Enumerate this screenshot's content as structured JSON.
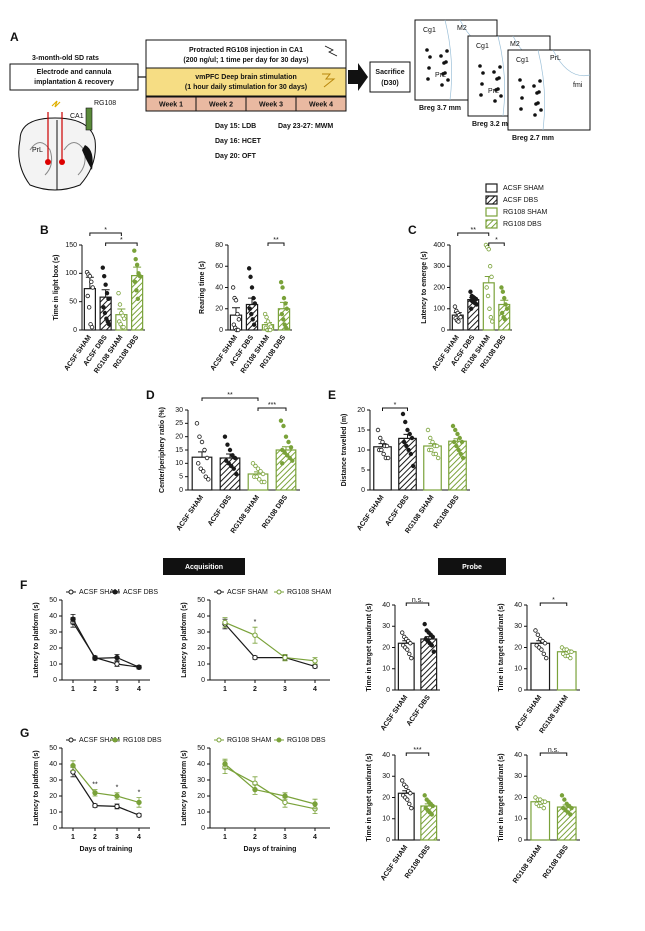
{
  "diagram": {
    "panel": "A",
    "subject": "3-month-old SD rats",
    "surgery": [
      "Electrode and cannula",
      "implantation & recovery"
    ],
    "region": "CA1",
    "drug": "RG108",
    "target": "PrL",
    "injection": "Protracted RG108 injection in CA1",
    "injection_detail": "(200 ng/ul; 1 time per day for 30 days)",
    "stimulation": "vmPFC Deep brain stimulation",
    "stimulation_detail": "(1 hour daily stimulation for 30 days)",
    "weeks": [
      "Week 1",
      "Week 2",
      "Week 3",
      "Week 4"
    ],
    "endpoint": "Sacrifice",
    "endpoint_day": "(D30)",
    "schedule": [
      "Day 15: LDB",
      "Day 23-27: MWM",
      "Day 16: HCET",
      "Day 20: OFT"
    ],
    "sections": [
      {
        "labels": [
          "Cg1",
          "M2",
          "PrL"
        ],
        "bregma": "Breg 3.7 mm"
      },
      {
        "labels": [
          "Cg1",
          "M2",
          "PrL"
        ],
        "bregma": "Breg 3.2 mm"
      },
      {
        "labels": [
          "Cg1",
          "PrL",
          "fmi"
        ],
        "bregma": "Breg 2.7 mm"
      }
    ]
  },
  "legend": [
    {
      "name": "ACSF SHAM",
      "color": "#1a1a1a",
      "hatched": false
    },
    {
      "name": "ACSF DBS",
      "color": "#1a1a1a",
      "hatched": true
    },
    {
      "name": "RG108 SHAM",
      "color": "#7aa23a",
      "hatched": false
    },
    {
      "name": "RG108 DBS",
      "color": "#7aa23a",
      "hatched": true
    }
  ],
  "headers": {
    "acquisition": "Acquisition",
    "probe": "Probe"
  },
  "chart_data": [
    {
      "type": "bar",
      "panel": "B",
      "ylabel": "Time in light box (s)",
      "categories": [
        "ACSF SHAM",
        "ACSF DBS",
        "RG108 SHAM",
        "RG108 DBS"
      ],
      "values": [
        73,
        58,
        27,
        96
      ],
      "errors": [
        20,
        13,
        10,
        15
      ],
      "points": [
        [
          102,
          98,
          95,
          85,
          75,
          60,
          40,
          10,
          5
        ],
        [
          110,
          95,
          80,
          65,
          55,
          40,
          30,
          20,
          15,
          10
        ],
        [
          65,
          45,
          30,
          25,
          20,
          15,
          10,
          5,
          5
        ],
        [
          140,
          125,
          115,
          100,
          95,
          85,
          70,
          55
        ]
      ],
      "colors": [
        "#1a1a1a",
        "#1a1a1a",
        "#7aa23a",
        "#7aa23a"
      ],
      "hatched": [
        false,
        true,
        false,
        true
      ],
      "ylim": [
        0,
        150
      ],
      "yticks": [
        0,
        50,
        100,
        150
      ],
      "annotations": [
        {
          "text": "*",
          "between": [
            0,
            2
          ]
        },
        {
          "text": "*",
          "between": [
            1,
            3
          ]
        }
      ]
    },
    {
      "type": "bar",
      "ylabel": "Rearing time (s)",
      "categories": [
        "ACSF SHAM",
        "ACSF DBS",
        "RG108 SHAM",
        "RG108 DBS"
      ],
      "values": [
        14,
        24,
        5,
        20
      ],
      "errors": [
        7,
        6,
        2,
        6
      ],
      "points": [
        [
          40,
          30,
          28,
          15,
          10,
          5,
          2,
          0,
          0
        ],
        [
          58,
          50,
          40,
          30,
          25,
          20,
          15,
          10,
          5
        ],
        [
          15,
          12,
          8,
          5,
          3,
          2,
          0,
          0,
          0
        ],
        [
          45,
          40,
          30,
          25,
          20,
          15,
          10,
          5,
          2
        ]
      ],
      "colors": [
        "#1a1a1a",
        "#1a1a1a",
        "#7aa23a",
        "#7aa23a"
      ],
      "hatched": [
        false,
        true,
        false,
        true
      ],
      "ylim": [
        0,
        80
      ],
      "yticks": [
        0,
        20,
        40,
        60,
        80
      ],
      "annotations": [
        {
          "text": "**",
          "between": [
            2,
            3
          ]
        }
      ]
    },
    {
      "type": "bar",
      "panel": "C",
      "ylabel": "Latency to emerge (s)",
      "categories": [
        "ACSF SHAM",
        "ACSF DBS",
        "RG108 SHAM",
        "RG108 DBS"
      ],
      "values": [
        70,
        143,
        222,
        120
      ],
      "errors": [
        12,
        10,
        30,
        20
      ],
      "points": [
        [
          110,
          90,
          80,
          70,
          60,
          55,
          45,
          40
        ],
        [
          180,
          160,
          155,
          150,
          145,
          140,
          135,
          130,
          125,
          120,
          100
        ],
        [
          400,
          390,
          380,
          300,
          250,
          200,
          160,
          100,
          60,
          40
        ],
        [
          200,
          180,
          150,
          120,
          100,
          80,
          60,
          50
        ]
      ],
      "colors": [
        "#1a1a1a",
        "#1a1a1a",
        "#7aa23a",
        "#7aa23a"
      ],
      "hatched": [
        false,
        true,
        false,
        true
      ],
      "ylim": [
        0,
        400
      ],
      "yticks": [
        0,
        100,
        200,
        300,
        400
      ],
      "annotations": [
        {
          "text": "**",
          "between": [
            0,
            2
          ]
        },
        {
          "text": "*",
          "between": [
            2,
            3
          ]
        }
      ]
    },
    {
      "type": "bar",
      "panel": "D",
      "ylabel": "Center/periphery ratio (%)",
      "categories": [
        "ACSF SHAM",
        "ACSF DBS",
        "RG108 SHAM",
        "RG108 DBS"
      ],
      "values": [
        12.3,
        12,
        6,
        15
      ],
      "errors": [
        2,
        1.5,
        0.8,
        1.2
      ],
      "points": [
        [
          25,
          20,
          18,
          15,
          12,
          10,
          8,
          7,
          5,
          4
        ],
        [
          20,
          17,
          15,
          13,
          12,
          11,
          10,
          9,
          8,
          6
        ],
        [
          10,
          9,
          8,
          7,
          6,
          5,
          5,
          4,
          3,
          3
        ],
        [
          26,
          24,
          20,
          18,
          16,
          15,
          14,
          13,
          12,
          11,
          10
        ]
      ],
      "colors": [
        "#1a1a1a",
        "#1a1a1a",
        "#7aa23a",
        "#7aa23a"
      ],
      "hatched": [
        false,
        true,
        false,
        true
      ],
      "ylim": [
        0,
        30
      ],
      "yticks": [
        0,
        5,
        10,
        15,
        20,
        25,
        30
      ],
      "annotations": [
        {
          "text": "**",
          "between": [
            0,
            2
          ]
        },
        {
          "text": "***",
          "between": [
            2,
            3
          ]
        }
      ]
    },
    {
      "type": "bar",
      "panel": "E",
      "ylabel": "Distance travelled (m)",
      "categories": [
        "ACSF SHAM",
        "ACSF DBS",
        "RG108 SHAM",
        "RG108 DBS"
      ],
      "values": [
        10.8,
        12.9,
        11,
        12.2
      ],
      "errors": [
        0.8,
        1,
        0.6,
        0.6
      ],
      "points": [
        [
          15,
          13,
          12,
          11,
          11,
          10,
          10,
          9,
          8,
          8
        ],
        [
          19,
          17,
          15,
          14,
          13,
          12,
          11,
          10,
          9,
          6
        ],
        [
          15,
          13,
          12,
          11,
          11,
          10,
          10,
          9,
          9,
          8
        ],
        [
          16,
          15,
          14,
          13,
          12,
          12,
          11,
          10,
          9,
          8
        ]
      ],
      "colors": [
        "#1a1a1a",
        "#1a1a1a",
        "#7aa23a",
        "#7aa23a"
      ],
      "hatched": [
        false,
        true,
        false,
        true
      ],
      "ylim": [
        0,
        20
      ],
      "yticks": [
        0,
        5,
        10,
        15,
        20
      ],
      "annotations": [
        {
          "text": "*",
          "between": [
            0,
            1
          ]
        }
      ]
    },
    {
      "type": "line",
      "panel": "F",
      "ylabel": "Latency to platform (s)",
      "x": [
        1,
        2,
        3,
        4
      ],
      "xlim": [
        0.5,
        4.5
      ],
      "xticks": [
        1,
        2,
        3,
        4
      ],
      "ylim": [
        0,
        50
      ],
      "yticks": [
        0,
        10,
        20,
        30,
        40,
        50
      ],
      "series": [
        {
          "name": "ACSF SHAM",
          "color": "#1a1a1a",
          "marker": "open",
          "values": [
            36,
            14,
            10,
            8
          ],
          "errors": [
            3,
            1,
            1.5,
            1
          ]
        },
        {
          "name": "ACSF DBS",
          "color": "#1a1a1a",
          "marker": "filled",
          "values": [
            38,
            13.5,
            14,
            8
          ],
          "errors": [
            3,
            1,
            2,
            1
          ]
        }
      ],
      "annotations": []
    },
    {
      "type": "line",
      "ylabel": "Latency to platform (s)",
      "x": [
        1,
        2,
        3,
        4
      ],
      "xlim": [
        0.5,
        4.5
      ],
      "xticks": [
        1,
        2,
        3,
        4
      ],
      "ylim": [
        0,
        50
      ],
      "yticks": [
        0,
        10,
        20,
        30,
        40,
        50
      ],
      "series": [
        {
          "name": "ACSF SHAM",
          "color": "#1a1a1a",
          "marker": "open",
          "values": [
            35,
            14,
            14,
            8.5
          ],
          "errors": [
            3,
            1,
            1.5,
            1
          ]
        },
        {
          "name": "RG108 SHAM",
          "color": "#7aa23a",
          "marker": "open",
          "values": [
            36,
            28,
            14,
            12
          ],
          "errors": [
            3,
            5,
            2,
            2
          ]
        }
      ],
      "annotations": [
        {
          "text": "*",
          "x": 2
        }
      ]
    },
    {
      "type": "bar",
      "ylabel": "Time in target quadrant (s)",
      "categories": [
        "ACSF SHAM",
        "ACSF DBS"
      ],
      "values": [
        22,
        24
      ],
      "errors": [
        1.2,
        1.1
      ],
      "points": [
        [
          27,
          25,
          24,
          23,
          22,
          21,
          20,
          19,
          17,
          15
        ],
        [
          31,
          28,
          27,
          26,
          25,
          24,
          23,
          22,
          21,
          18
        ]
      ],
      "colors": [
        "#1a1a1a",
        "#1a1a1a"
      ],
      "hatched": [
        false,
        true
      ],
      "ylim": [
        0,
        40
      ],
      "yticks": [
        0,
        10,
        20,
        30,
        40
      ],
      "annotations": [
        {
          "text": "n.s.",
          "between": [
            0,
            1
          ]
        }
      ]
    },
    {
      "type": "bar",
      "ylabel": "Time in target quadrant (s)",
      "categories": [
        "ACSF SHAM",
        "RG108 SHAM"
      ],
      "values": [
        22,
        18
      ],
      "errors": [
        1.2,
        0.9
      ],
      "points": [
        [
          28,
          26,
          24,
          23,
          22,
          21,
          20,
          19,
          17,
          15
        ],
        [
          20,
          19,
          19,
          18,
          18,
          17,
          16,
          16,
          15
        ]
      ],
      "colors": [
        "#1a1a1a",
        "#7aa23a"
      ],
      "hatched": [
        false,
        false
      ],
      "ylim": [
        0,
        40
      ],
      "yticks": [
        0,
        10,
        20,
        30,
        40
      ],
      "annotations": [
        {
          "text": "*",
          "between": [
            0,
            1
          ]
        }
      ]
    },
    {
      "type": "line",
      "panel": "G",
      "ylabel": "Latency to platform (s)",
      "xlabel": "Days of training",
      "x": [
        1,
        2,
        3,
        4
      ],
      "xlim": [
        0.5,
        4.5
      ],
      "xticks": [
        1,
        2,
        3,
        4
      ],
      "ylim": [
        0,
        50
      ],
      "yticks": [
        0,
        10,
        20,
        30,
        40,
        50
      ],
      "series": [
        {
          "name": "ACSF SHAM",
          "color": "#1a1a1a",
          "marker": "open",
          "values": [
            35,
            14,
            13.5,
            8
          ],
          "errors": [
            3,
            1,
            1.5,
            1
          ]
        },
        {
          "name": "RG108 DBS",
          "color": "#7aa23a",
          "marker": "filled",
          "values": [
            39,
            22,
            20,
            16
          ],
          "errors": [
            3,
            2,
            2,
            3
          ]
        }
      ],
      "annotations": [
        {
          "text": "**",
          "x": 2
        },
        {
          "text": "*",
          "x": 3
        },
        {
          "text": "*",
          "x": 4
        }
      ]
    },
    {
      "type": "line",
      "ylabel": "Latency to platform (s)",
      "xlabel": "Days of training",
      "x": [
        1,
        2,
        3,
        4
      ],
      "xlim": [
        0.5,
        4.5
      ],
      "xticks": [
        1,
        2,
        3,
        4
      ],
      "ylim": [
        0,
        50
      ],
      "yticks": [
        0,
        10,
        20,
        30,
        40,
        50
      ],
      "series": [
        {
          "name": "RG108 SHAM",
          "color": "#7aa23a",
          "marker": "open",
          "values": [
            38,
            28,
            16,
            12
          ],
          "errors": [
            4,
            4,
            3,
            3
          ]
        },
        {
          "name": "RG108 DBS",
          "color": "#7aa23a",
          "marker": "filled",
          "values": [
            40,
            24,
            20,
            15
          ],
          "errors": [
            3,
            3,
            2,
            3
          ]
        }
      ],
      "annotations": []
    },
    {
      "type": "bar",
      "ylabel": "Time in target quadrant (s)",
      "categories": [
        "ACSF SHAM",
        "RG108 DBS"
      ],
      "values": [
        22,
        16
      ],
      "errors": [
        1.2,
        1
      ],
      "points": [
        [
          28,
          26,
          25,
          23,
          22,
          21,
          20,
          19,
          17,
          15
        ],
        [
          21,
          19,
          18,
          17,
          16,
          15,
          14,
          13,
          12
        ]
      ],
      "colors": [
        "#1a1a1a",
        "#7aa23a"
      ],
      "hatched": [
        false,
        true
      ],
      "ylim": [
        0,
        40
      ],
      "yticks": [
        0,
        10,
        20,
        30,
        40
      ],
      "annotations": [
        {
          "text": "***",
          "between": [
            0,
            1
          ]
        }
      ]
    },
    {
      "type": "bar",
      "ylabel": "Time in target quadrant (s)",
      "categories": [
        "RG108 SHAM",
        "RG108 DBS"
      ],
      "values": [
        18,
        15.5
      ],
      "errors": [
        0.9,
        1
      ],
      "points": [
        [
          20,
          19,
          19,
          18,
          18,
          17,
          16,
          16,
          15
        ],
        [
          21,
          19,
          17,
          16,
          15,
          15,
          14,
          13,
          12
        ]
      ],
      "colors": [
        "#7aa23a",
        "#7aa23a"
      ],
      "hatched": [
        false,
        true
      ],
      "ylim": [
        0,
        40
      ],
      "yticks": [
        0,
        10,
        20,
        30,
        40
      ],
      "annotations": [
        {
          "text": "n.s.",
          "between": [
            0,
            1
          ]
        }
      ]
    }
  ]
}
